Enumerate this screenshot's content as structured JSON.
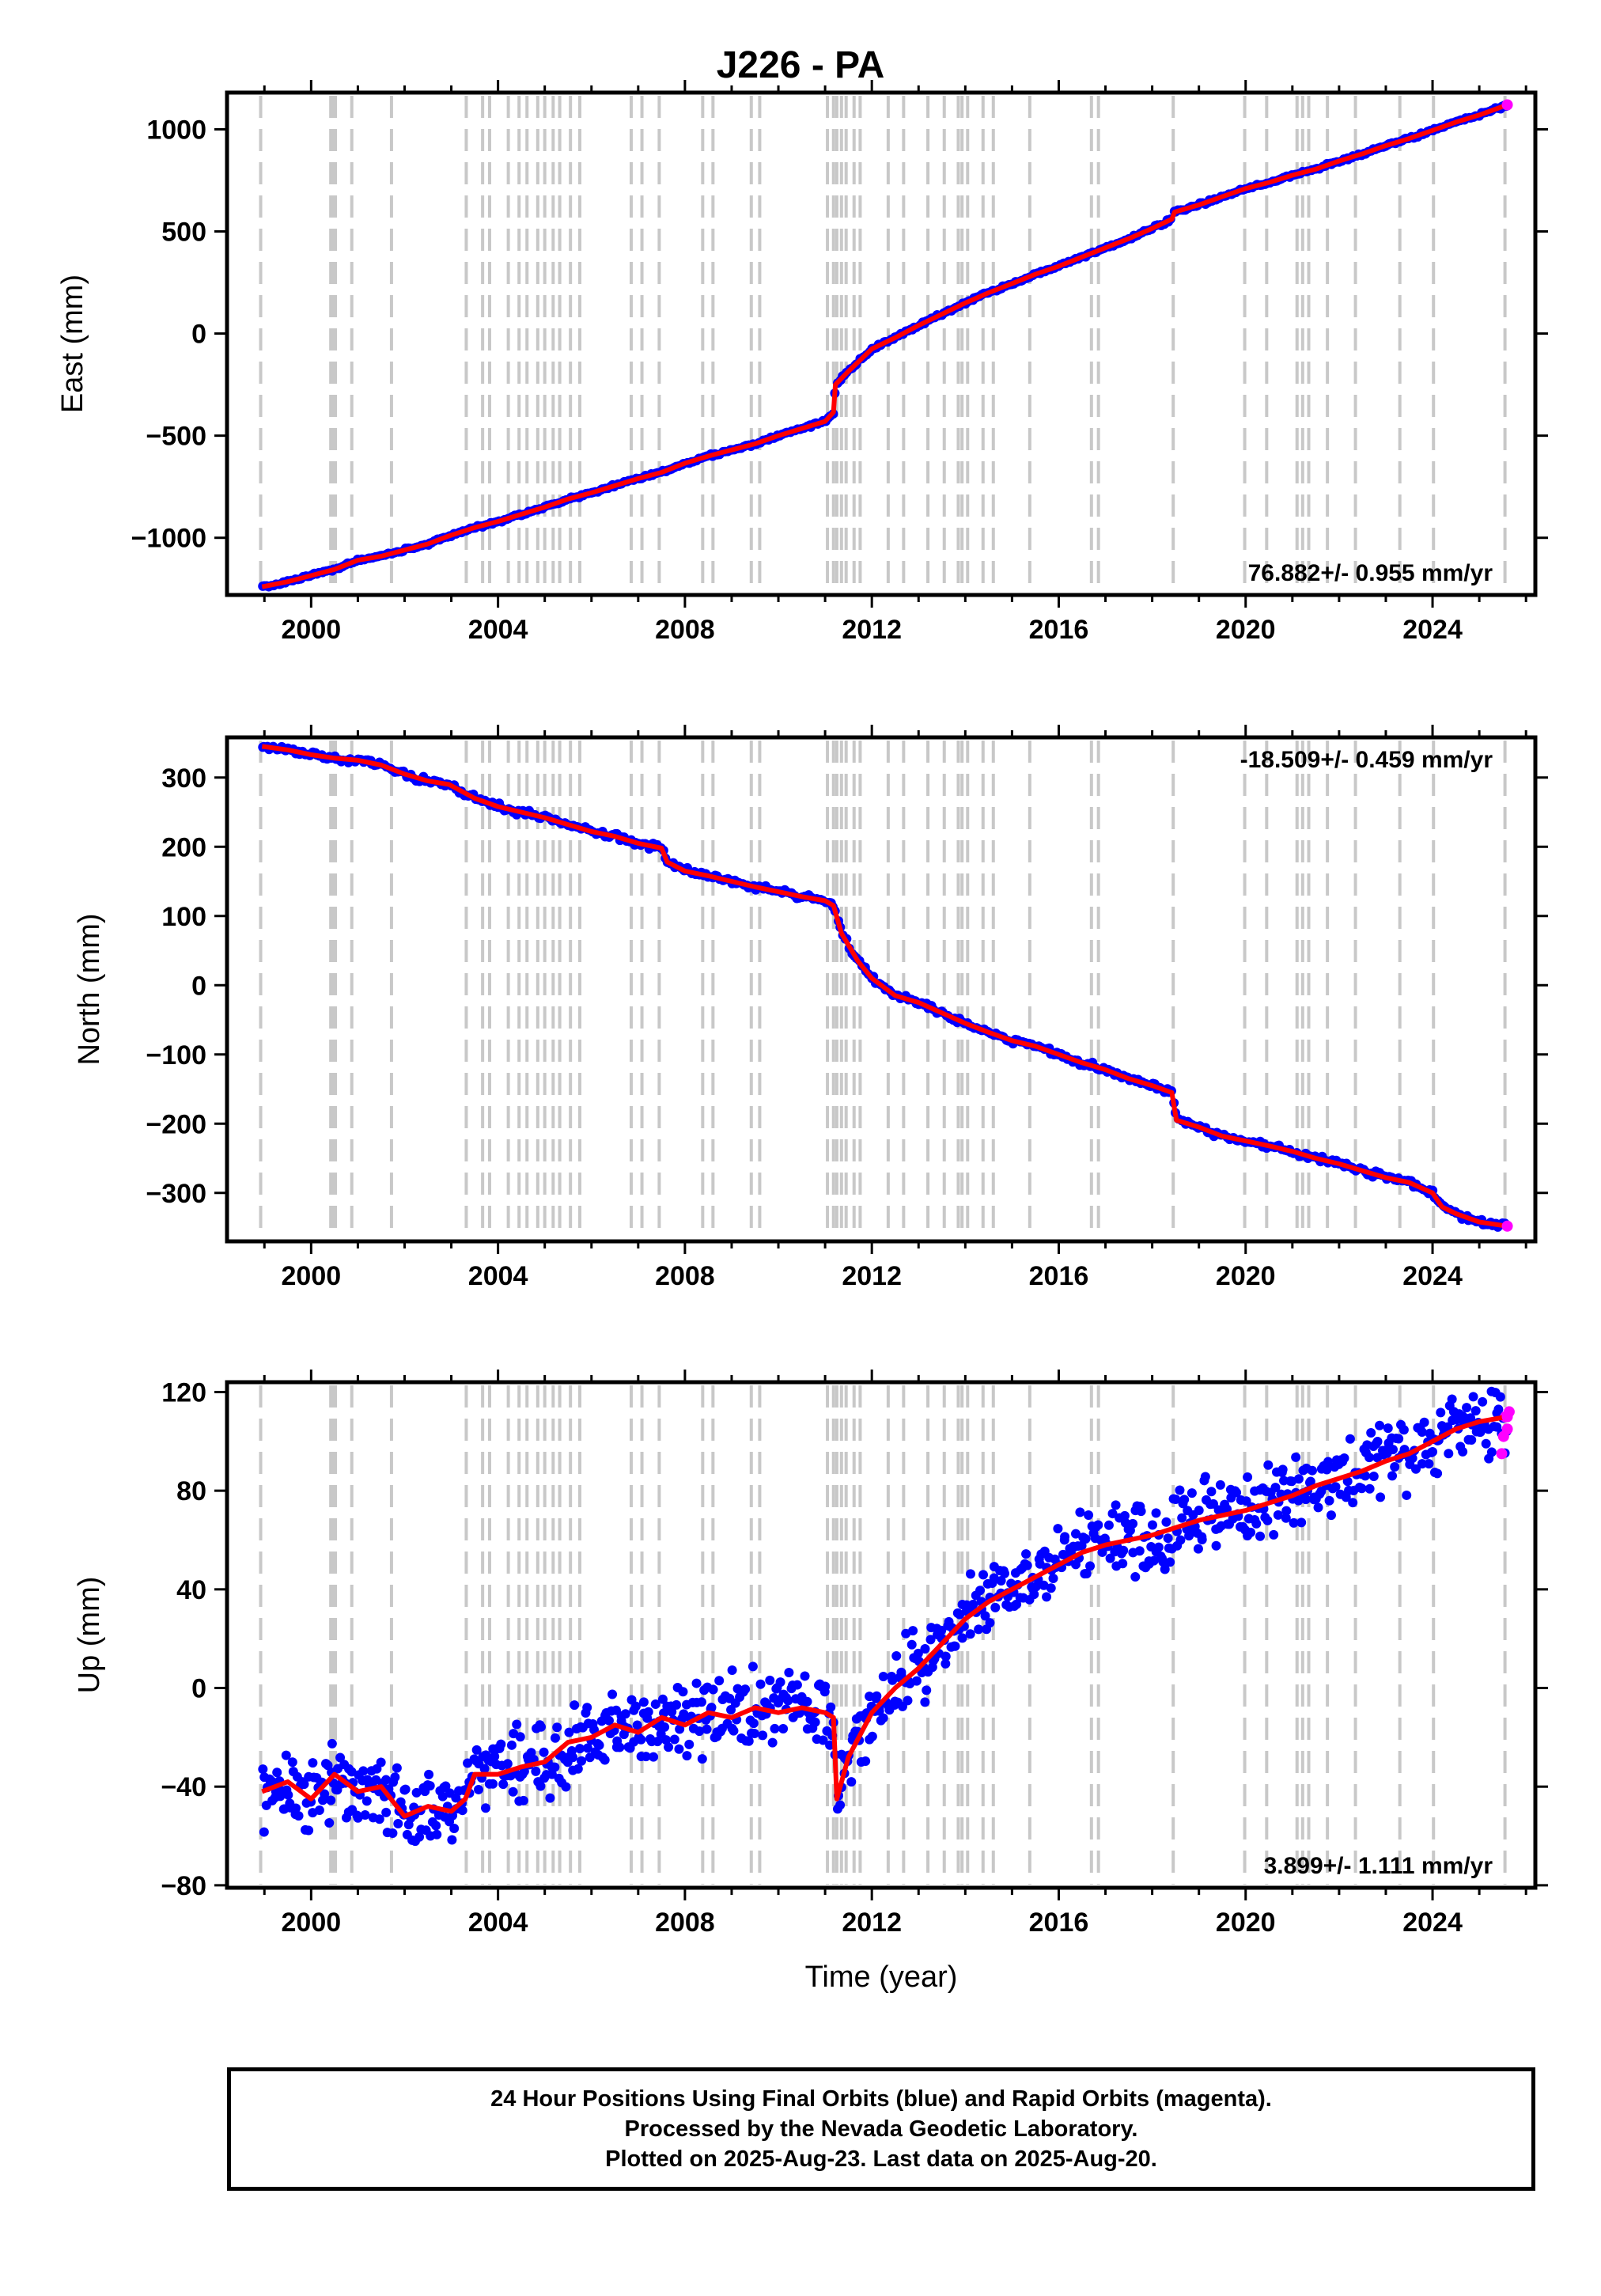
{
  "chart_data": {
    "type": "scatter",
    "title": "J226 - PA",
    "colors": {
      "final": "#0000ff",
      "rapid": "#ff00ff",
      "model": "#ff0000",
      "steps": "#c8c8c8"
    },
    "xlim": [
      1998.2,
      2026.2
    ],
    "xticks": [
      2000,
      2004,
      2008,
      2012,
      2016,
      2020,
      2024
    ],
    "xtick_labels": [
      "2000",
      "2004",
      "2008",
      "2012",
      "2016",
      "2020",
      "2024"
    ],
    "xlabel": "Time (year)",
    "step_epochs": [
      1998.92,
      2000.42,
      2000.47,
      2000.52,
      2000.87,
      2001.72,
      2003.32,
      2003.67,
      2003.82,
      2004.22,
      2004.45,
      2004.62,
      2004.85,
      2005.0,
      2005.18,
      2005.32,
      2005.55,
      2005.75,
      2006.85,
      2007.08,
      2007.45,
      2008.38,
      2008.6,
      2009.42,
      2009.6,
      2011.05,
      2011.18,
      2011.25,
      2011.35,
      2011.45,
      2011.62,
      2011.75,
      2012.35,
      2012.68,
      2013.2,
      2013.55,
      2013.85,
      2013.93,
      2014.05,
      2014.38,
      2014.6,
      2015.38,
      2016.7,
      2016.85,
      2018.45,
      2019.98,
      2020.45,
      2021.1,
      2021.22,
      2021.35,
      2021.75,
      2022.35,
      2023.3,
      2024.02,
      2025.55
    ],
    "panels": [
      {
        "ylabel": "East (mm)",
        "ylim": [
          -1280,
          1180
        ],
        "yticks": [
          -1000,
          -500,
          0,
          500,
          1000
        ],
        "ytick_labels": [
          "−1000",
          "−500",
          "0",
          "500",
          "1000"
        ],
        "rate_text": "76.882+/- 0.955 mm/yr",
        "rate_pos": "bottom-right",
        "series": [
          {
            "x": [
              1998.95,
              1999.5,
              2000.0,
              2000.5,
              2001.0,
              2001.5,
              2002.0,
              2002.5,
              2002.9,
              2003.5,
              2004.0,
              2004.5,
              2005.0,
              2005.5,
              2006.0,
              2006.5,
              2007.0,
              2007.5,
              2008.0,
              2008.5,
              2009.0,
              2009.5,
              2010.0,
              2010.5,
              2011.0,
              2011.18,
              2011.22,
              2011.5,
              2012.0,
              2012.5,
              2013.0,
              2013.5,
              2014.0,
              2014.5,
              2015.0,
              2015.5,
              2016.0,
              2016.5,
              2017.0,
              2017.5,
              2018.0,
              2018.42,
              2018.48,
              2019.0,
              2019.5,
              2020.0,
              2020.5,
              2021.0,
              2021.5,
              2022.0,
              2022.5,
              2023.0,
              2023.5,
              2024.0,
              2024.5,
              2025.0,
              2025.6
            ],
            "y": [
              -1240,
              -1215,
              -1185,
              -1155,
              -1110,
              -1090,
              -1060,
              -1030,
              -995,
              -950,
              -920,
              -885,
              -850,
              -810,
              -780,
              -745,
              -710,
              -680,
              -635,
              -600,
              -570,
              -540,
              -500,
              -465,
              -430,
              -385,
              -250,
              -185,
              -75,
              -20,
              40,
              95,
              150,
              200,
              245,
              290,
              330,
              375,
              420,
              465,
              515,
              560,
              595,
              630,
              670,
              710,
              740,
              775,
              805,
              845,
              880,
              920,
              955,
              995,
              1035,
              1070,
              1120
            ]
          }
        ]
      },
      {
        "ylabel": "North (mm)",
        "ylim": [
          -370,
          358
        ],
        "yticks": [
          -300,
          -200,
          -100,
          0,
          100,
          200,
          300
        ],
        "ytick_labels": [
          "−300",
          "−200",
          "−100",
          "0",
          "100",
          "200",
          "300"
        ],
        "rate_text": "-18.509+/- 0.459 mm/yr",
        "rate_pos": "top-right",
        "series": [
          {
            "x": [
              1998.95,
              1999.5,
              2000.0,
              2000.5,
              2001.0,
              2001.5,
              2002.0,
              2002.5,
              2002.95,
              2003.5,
              2004.0,
              2004.5,
              2005.0,
              2005.5,
              2006.0,
              2006.5,
              2007.0,
              2007.5,
              2007.62,
              2008.0,
              2008.5,
              2009.0,
              2009.5,
              2010.0,
              2010.5,
              2011.0,
              2011.18,
              2011.35,
              2011.7,
              2012.0,
              2012.5,
              2013.0,
              2013.5,
              2014.0,
              2014.5,
              2015.0,
              2015.5,
              2016.0,
              2016.5,
              2017.0,
              2017.5,
              2018.0,
              2018.42,
              2018.52,
              2019.0,
              2019.5,
              2020.0,
              2020.5,
              2021.0,
              2021.5,
              2022.0,
              2022.5,
              2023.0,
              2023.5,
              2024.0,
              2024.2,
              2024.5,
              2025.0,
              2025.6
            ],
            "y": [
              345,
              340,
              333,
              328,
              325,
              318,
              305,
              295,
              290,
              270,
              258,
              250,
              242,
              232,
              222,
              215,
              205,
              198,
              178,
              165,
              158,
              150,
              142,
              135,
              128,
              122,
              115,
              75,
              35,
              10,
              -15,
              -25,
              -40,
              -55,
              -68,
              -80,
              -88,
              -100,
              -112,
              -122,
              -135,
              -145,
              -155,
              -195,
              -205,
              -218,
              -225,
              -232,
              -240,
              -250,
              -258,
              -268,
              -278,
              -285,
              -300,
              -320,
              -330,
              -342,
              -348
            ]
          }
        ]
      },
      {
        "ylabel": "Up (mm)",
        "ylim": [
          -81,
          124
        ],
        "yticks": [
          -80,
          -40,
          0,
          40,
          80,
          120
        ],
        "ytick_labels": [
          "−80",
          "−40",
          "0",
          "40",
          "80",
          "120"
        ],
        "rate_text": "3.899+/- 1.111 mm/yr",
        "rate_pos": "bottom-right",
        "series": [
          {
            "x": [
              1998.95,
              1999.5,
              2000.0,
              2000.5,
              2001.0,
              2001.5,
              2002.0,
              2002.5,
              2003.0,
              2003.3,
              2003.5,
              2004.0,
              2004.5,
              2005.0,
              2005.5,
              2006.0,
              2006.5,
              2007.0,
              2007.5,
              2008.0,
              2008.5,
              2009.0,
              2009.5,
              2010.0,
              2010.5,
              2011.0,
              2011.18,
              2011.25,
              2011.5,
              2012.0,
              2012.5,
              2013.0,
              2013.5,
              2014.0,
              2014.5,
              2015.0,
              2015.5,
              2016.0,
              2016.5,
              2017.0,
              2017.5,
              2018.0,
              2018.5,
              2019.0,
              2019.5,
              2020.0,
              2020.5,
              2021.0,
              2021.5,
              2022.0,
              2022.5,
              2023.0,
              2023.5,
              2024.0,
              2024.5,
              2025.0,
              2025.6
            ],
            "y": [
              -42,
              -38,
              -45,
              -35,
              -42,
              -40,
              -52,
              -48,
              -50,
              -45,
              -35,
              -35,
              -32,
              -30,
              -22,
              -20,
              -15,
              -18,
              -12,
              -15,
              -10,
              -12,
              -8,
              -10,
              -8,
              -10,
              -12,
              -45,
              -28,
              -10,
              0,
              8,
              18,
              28,
              35,
              40,
              45,
              50,
              55,
              58,
              60,
              62,
              65,
              68,
              70,
              72,
              75,
              78,
              82,
              85,
              88,
              92,
              95,
              100,
              105,
              108,
              110
            ],
            "rapid_x": [
              2025.48,
              2025.52,
              2025.56,
              2025.6,
              2025.64
            ],
            "rapid_y": [
              95,
              102,
              110,
              105,
              112
            ]
          }
        ]
      }
    ]
  },
  "caption": {
    "line1": "24 Hour Positions Using Final Orbits (blue) and Rapid Orbits (magenta).",
    "line2": "Processed by the Nevada Geodetic Laboratory.",
    "line3": "Plotted on 2025-Aug-23. Last data on 2025-Aug-20."
  }
}
